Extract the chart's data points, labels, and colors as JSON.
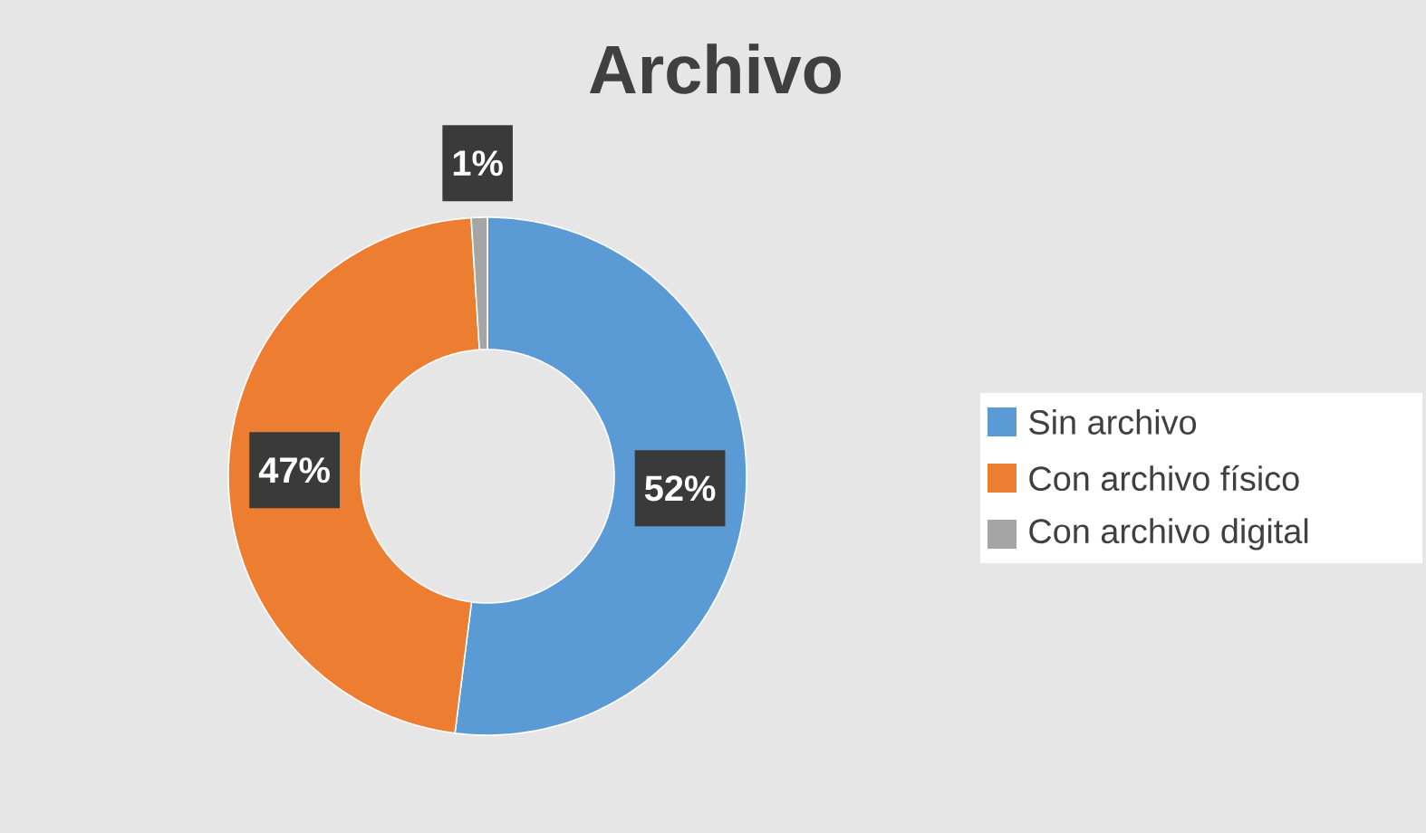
{
  "chart_data": {
    "type": "donut",
    "title": "Archivo",
    "categories": [
      "Sin archivo",
      "Con archivo físico",
      "Con archivo digital"
    ],
    "values": [
      52,
      47,
      1
    ],
    "colors": [
      "#5b9bd5",
      "#ed7d31",
      "#a5a5a5"
    ],
    "value_labels": [
      "52%",
      "47%",
      "1%"
    ],
    "legend": "right"
  }
}
